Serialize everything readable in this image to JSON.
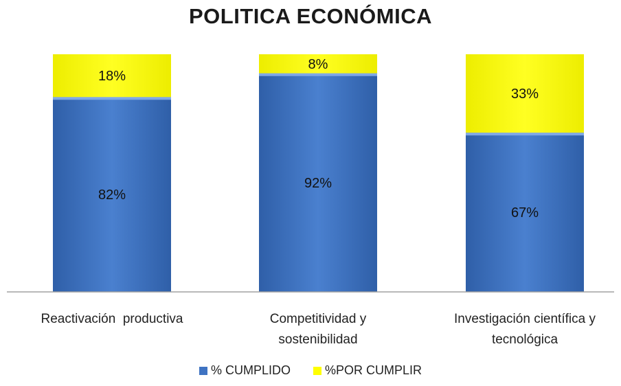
{
  "chart_data": {
    "type": "bar",
    "stacked": true,
    "title": "POLITICA ECONÓMICA",
    "categories": [
      [
        "Reactivación  productiva"
      ],
      [
        "Competitividad y",
        "sostenibilidad"
      ],
      [
        "Investigación científica y",
        "tecnológica"
      ]
    ],
    "series": [
      {
        "name": "% CUMPLIDO",
        "values": [
          82,
          92,
          67
        ],
        "labels": [
          "82%",
          "92%",
          "67%"
        ],
        "color": "#3F73C2"
      },
      {
        "name": "%POR CUMPLIR",
        "values": [
          18,
          8,
          33
        ],
        "labels": [
          "18%",
          "8%",
          "33%"
        ],
        "color": "#FFFF00"
      }
    ],
    "ylim": [
      0,
      100
    ],
    "grid": false,
    "legend": "bottom"
  }
}
